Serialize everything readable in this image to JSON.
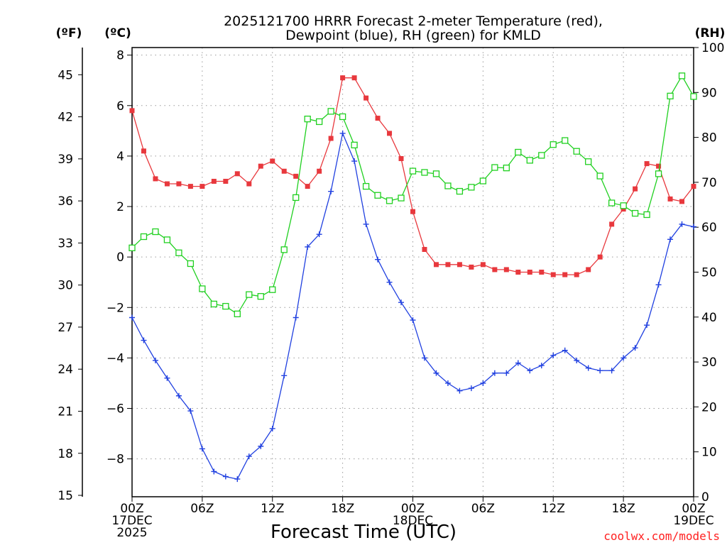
{
  "chart_data": {
    "type": "line",
    "title_lines": [
      "2025121700 HRRR Forecast 2-meter Temperature (red),",
      "Dewpoint (blue), RH (green) for KMLD"
    ],
    "xlabel": "Forecast Time (UTC)",
    "credit": "coolwx.com/models",
    "units": {
      "fahrenheit": "(ºF)",
      "celsius": "(ºC)",
      "rh": "(RH)"
    },
    "x_hours": [
      0,
      1,
      2,
      3,
      4,
      5,
      6,
      7,
      8,
      9,
      10,
      11,
      12,
      13,
      14,
      15,
      16,
      17,
      18,
      19,
      20,
      21,
      22,
      23,
      24,
      25,
      26,
      27,
      28,
      29,
      30,
      31,
      32,
      33,
      34,
      35,
      36,
      37,
      38,
      39,
      40,
      41,
      42,
      43,
      44,
      45,
      46,
      47,
      48
    ],
    "xlim": [
      0,
      48
    ],
    "ylim_celsius": [
      -9.5,
      8.3
    ],
    "ylim_rh": [
      0,
      100
    ],
    "x_ticks": [
      {
        "hour": 0,
        "labels": [
          "00Z",
          "17DEC",
          "2025"
        ]
      },
      {
        "hour": 6,
        "labels": [
          "06Z"
        ]
      },
      {
        "hour": 12,
        "labels": [
          "12Z"
        ]
      },
      {
        "hour": 18,
        "labels": [
          "18Z"
        ]
      },
      {
        "hour": 24,
        "labels": [
          "00Z",
          "18DEC"
        ]
      },
      {
        "hour": 30,
        "labels": [
          "06Z"
        ]
      },
      {
        "hour": 36,
        "labels": [
          "12Z"
        ]
      },
      {
        "hour": 42,
        "labels": [
          "18Z"
        ]
      },
      {
        "hour": 48,
        "labels": [
          "00Z",
          "19DEC"
        ]
      }
    ],
    "celsius_ticks": [
      -8,
      -6,
      -4,
      -2,
      0,
      2,
      4,
      6,
      8
    ],
    "celsius_tick_labels": [
      "−8",
      "−6",
      "−4",
      "−2",
      "0",
      "2",
      "4",
      "6",
      "8"
    ],
    "fahrenheit_ticks": [
      15,
      18,
      21,
      24,
      27,
      30,
      33,
      36,
      39,
      42,
      45
    ],
    "rh_ticks": [
      0,
      10,
      20,
      30,
      40,
      50,
      60,
      70,
      80,
      90,
      100
    ],
    "series": [
      {
        "name": "Temperature",
        "units": "°C",
        "color": "#e8383d",
        "marker": "filled-square",
        "values": [
          5.8,
          4.2,
          3.1,
          2.9,
          2.9,
          2.8,
          2.8,
          3.0,
          3.0,
          3.3,
          2.9,
          3.6,
          3.8,
          3.4,
          3.2,
          2.8,
          3.4,
          4.7,
          7.1,
          7.1,
          6.3,
          5.5,
          4.9,
          3.9,
          1.8,
          0.3,
          -0.3,
          -0.3,
          -0.3,
          -0.4,
          -0.3,
          -0.5,
          -0.5,
          -0.6,
          -0.6,
          -0.6,
          -0.7,
          -0.7,
          -0.7,
          -0.5,
          0.0,
          1.3,
          1.9,
          2.7,
          3.7,
          3.6,
          2.3,
          2.2,
          2.8
        ]
      },
      {
        "name": "Dewpoint",
        "units": "°C",
        "color": "#2040e0",
        "marker": "plus",
        "values": [
          -2.4,
          -3.3,
          -4.1,
          -4.8,
          -5.5,
          -6.1,
          -7.6,
          -8.5,
          -8.7,
          -8.8,
          -7.9,
          -7.5,
          -6.8,
          -4.7,
          -2.4,
          0.4,
          0.9,
          2.6,
          4.9,
          3.8,
          1.3,
          -0.1,
          -1.0,
          -1.8,
          -2.5,
          -4.0,
          -4.6,
          -5.0,
          -5.3,
          -5.2,
          -5.0,
          -4.6,
          -4.6,
          -4.2,
          -4.5,
          -4.3,
          -3.9,
          -3.7,
          -4.1,
          -4.4,
          -4.5,
          -4.5,
          -4.0,
          -3.6,
          -2.7,
          -1.1,
          0.7,
          1.3,
          1.2
        ]
      },
      {
        "name": "RH",
        "units": "%",
        "color": "#20d020",
        "marker": "open-square",
        "values": [
          55.4,
          57.9,
          59.0,
          57.2,
          54.3,
          51.9,
          46.3,
          42.9,
          42.4,
          40.7,
          45.0,
          44.6,
          46.1,
          55.0,
          66.6,
          84.1,
          83.5,
          85.8,
          84.6,
          78.3,
          69.1,
          67.1,
          65.9,
          66.5,
          72.5,
          72.2,
          71.9,
          69.2,
          68.0,
          68.9,
          70.3,
          73.3,
          73.2,
          76.7,
          74.9,
          76.0,
          78.4,
          79.3,
          76.9,
          74.6,
          71.4,
          65.4,
          64.8,
          63.1,
          62.8,
          71.9,
          89.2,
          93.7,
          89.1
        ]
      }
    ]
  }
}
